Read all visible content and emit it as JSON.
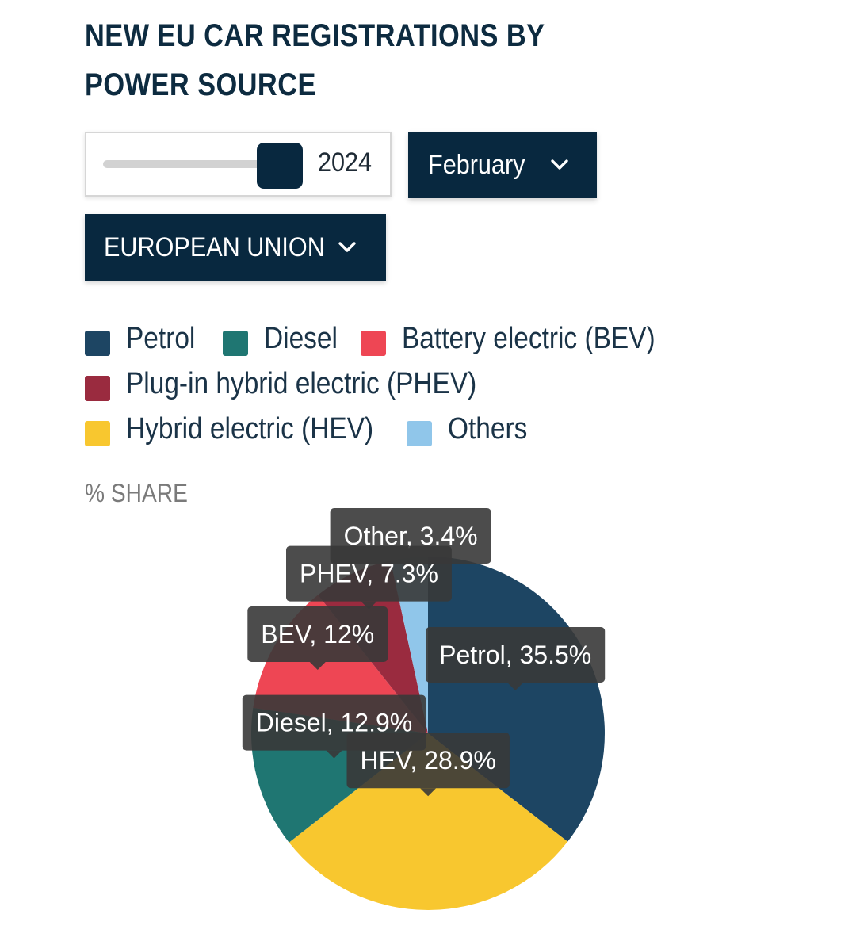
{
  "title": "NEW EU CAR REGISTRATIONS BY POWER SOURCE",
  "controls": {
    "year": "2024",
    "year_position": 1.0,
    "month": "February",
    "region": "EUROPEAN UNION"
  },
  "legend": [
    {
      "label": "Petrol",
      "color": "#1d4563"
    },
    {
      "label": "Diesel",
      "color": "#1f7672"
    },
    {
      "label": "Battery electric (BEV)",
      "color": "#ee4654"
    },
    {
      "label": "Plug-in hybrid electric (PHEV)",
      "color": "#9a2b3f"
    },
    {
      "label": "Hybrid electric (HEV)",
      "color": "#f8c72f"
    },
    {
      "label": "Others",
      "color": "#90c6ea"
    }
  ],
  "unit_label": "% SHARE",
  "chart_data": {
    "type": "pie",
    "title": "NEW EU CAR REGISTRATIONS BY POWER SOURCE",
    "unit": "% SHARE",
    "slices": [
      {
        "name": "Petrol",
        "value": 35.5,
        "label": "Petrol, 35.5%",
        "color": "#1d4563"
      },
      {
        "name": "HEV",
        "value": 28.9,
        "label": "HEV, 28.9%",
        "color": "#f8c72f"
      },
      {
        "name": "Diesel",
        "value": 12.9,
        "label": "Diesel, 12.9%",
        "color": "#1f7672"
      },
      {
        "name": "BEV",
        "value": 12,
        "label": "BEV, 12%",
        "color": "#ee4654"
      },
      {
        "name": "PHEV",
        "value": 7.3,
        "label": "PHEV, 7.3%",
        "color": "#9a2b3f"
      },
      {
        "name": "Other",
        "value": 3.4,
        "label": "Other, 3.4%",
        "color": "#90c6ea"
      }
    ],
    "legend_position": "top"
  }
}
